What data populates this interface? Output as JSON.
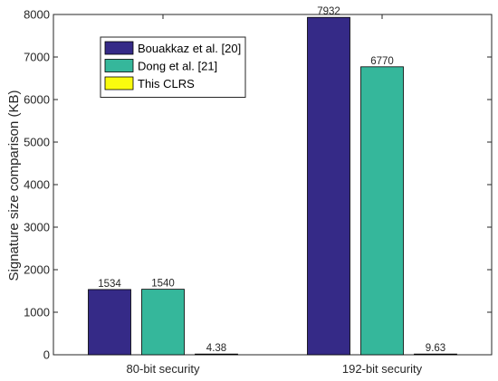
{
  "chart_data": {
    "type": "bar",
    "title": "",
    "xlabel": "",
    "ylabel": "Signature size comparison (KB)",
    "categories": [
      "80-bit security",
      "192-bit security"
    ],
    "ylim": [
      0,
      8000
    ],
    "yticks": [
      0,
      1000,
      2000,
      3000,
      4000,
      5000,
      6000,
      7000,
      8000
    ],
    "grid": false,
    "legend_position": "top-left",
    "series": [
      {
        "name": "Bouakkaz et al. [20]",
        "color": "#352a87",
        "values": [
          1534,
          7932
        ],
        "labels": [
          "1534",
          "7932"
        ]
      },
      {
        "name": "Dong et al. [21]",
        "color": "#35b79b",
        "values": [
          1540,
          6770
        ],
        "labels": [
          "1540",
          "6770"
        ]
      },
      {
        "name": "This CLRS",
        "color": "#f9fb0e",
        "values": [
          4.38,
          9.63
        ],
        "labels": [
          "4.38",
          "9.63"
        ]
      }
    ]
  }
}
